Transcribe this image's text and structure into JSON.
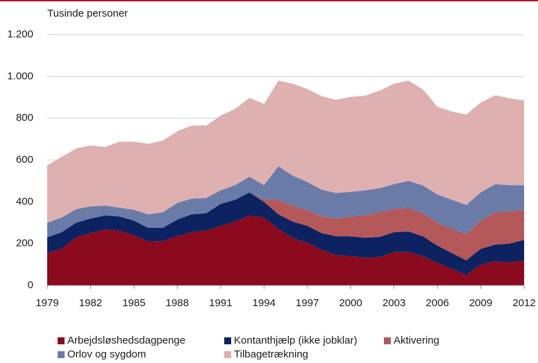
{
  "chart_data": {
    "type": "stacked_area",
    "y_axis_label": "Tusinde personer",
    "x": [
      1979,
      1980,
      1981,
      1982,
      1983,
      1984,
      1985,
      1986,
      1987,
      1988,
      1989,
      1990,
      1991,
      1992,
      1993,
      1994,
      1995,
      1996,
      1997,
      1998,
      1999,
      2000,
      2001,
      2002,
      2003,
      2004,
      2005,
      2006,
      2007,
      2008,
      2009,
      2010,
      2011,
      2012
    ],
    "xlim": [
      1979,
      2012
    ],
    "xticks": [
      1979,
      1982,
      1985,
      1988,
      1991,
      1994,
      1997,
      2000,
      2003,
      2006,
      2009,
      2012
    ],
    "ylim": [
      0,
      1200
    ],
    "yticks": [
      0,
      200,
      400,
      600,
      800,
      {
        "value": 1000,
        "label": "1.000"
      },
      {
        "value": 1200,
        "label": "1.200"
      }
    ],
    "grid": true,
    "series": [
      {
        "name": "Arbejdsløshedsdagpenge",
        "color": "#8b0a1e",
        "values": [
          155,
          175,
          230,
          250,
          268,
          262,
          240,
          210,
          212,
          235,
          255,
          262,
          285,
          305,
          335,
          325,
          270,
          225,
          205,
          170,
          145,
          140,
          133,
          135,
          160,
          160,
          140,
          108,
          80,
          50,
          100,
          115,
          110,
          118
        ]
      },
      {
        "name": "Kontanthjælp (ikke jobklar)",
        "color": "#0d2260",
        "values": [
          75,
          80,
          70,
          70,
          67,
          68,
          70,
          65,
          63,
          80,
          85,
          83,
          105,
          105,
          110,
          75,
          70,
          80,
          80,
          80,
          90,
          95,
          95,
          97,
          95,
          98,
          95,
          82,
          75,
          70,
          75,
          80,
          90,
          100
        ]
      },
      {
        "name": "Aktivering",
        "color": "#b5585a",
        "values": [
          0,
          0,
          0,
          0,
          0,
          0,
          0,
          0,
          0,
          0,
          0,
          0,
          0,
          0,
          0,
          10,
          70,
          75,
          75,
          80,
          85,
          95,
          107,
          118,
          110,
          112,
          110,
          110,
          115,
          125,
          135,
          155,
          155,
          142
        ]
      },
      {
        "name": "Orlov og sygdom",
        "color": "#6a7ba8",
        "values": [
          70,
          70,
          65,
          58,
          47,
          42,
          52,
          65,
          75,
          80,
          75,
          73,
          65,
          70,
          75,
          70,
          160,
          145,
          135,
          128,
          122,
          118,
          120,
          115,
          120,
          130,
          133,
          135,
          140,
          140,
          135,
          135,
          125,
          120
        ]
      },
      {
        "name": "Tilbagetrækning",
        "color": "#deb0b0",
        "values": [
          275,
          290,
          290,
          292,
          280,
          316,
          326,
          338,
          343,
          343,
          350,
          347,
          357,
          365,
          378,
          388,
          410,
          440,
          445,
          447,
          446,
          454,
          453,
          467,
          480,
          480,
          460,
          420,
          422,
          433,
          430,
          425,
          415,
          405
        ]
      }
    ]
  }
}
